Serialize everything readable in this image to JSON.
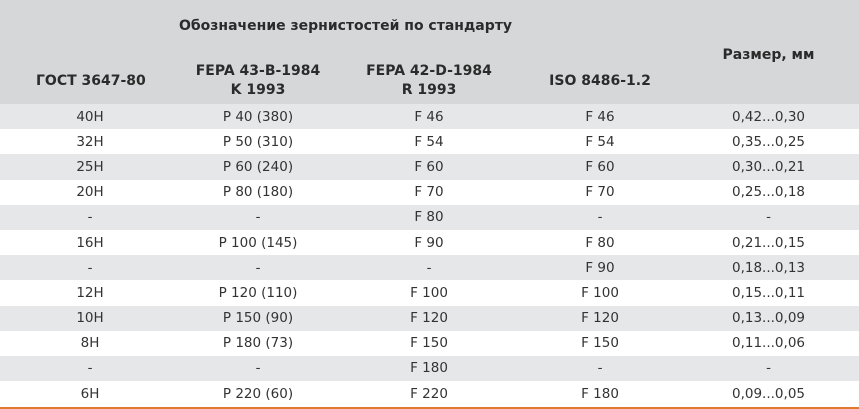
{
  "table": {
    "group_title": "Обозначение зернистостей по стандарту",
    "headers": {
      "gost": "ГОСТ 3647-80",
      "fepa43_line1": "FEPA 43-B-1984",
      "fepa43_line2": "K 1993",
      "fepa42_line1": "FEPA 42-D-1984",
      "fepa42_line2": "R 1993",
      "iso": "ISO 8486-1.2",
      "size": "Размер, мм"
    },
    "rows": [
      [
        "40H",
        "P 40 (380)",
        "F 46",
        "F 46",
        "0,42...0,30"
      ],
      [
        "32H",
        "P 50 (310)",
        "F 54",
        "F 54",
        "0,35...0,25"
      ],
      [
        "25H",
        "P 60 (240)",
        "F 60",
        "F 60",
        "0,30...0,21"
      ],
      [
        "20H",
        "P 80 (180)",
        "F 70",
        "F 70",
        "0,25...0,18"
      ],
      [
        "-",
        "-",
        "F 80",
        "-",
        "-"
      ],
      [
        "16H",
        "P 100 (145)",
        "F 90",
        "F 80",
        "0,21...0,15"
      ],
      [
        "-",
        "-",
        "-",
        "F 90",
        "0,18...0,13"
      ],
      [
        "12H",
        "P 120 (110)",
        "F 100",
        "F 100",
        "0,15...0,11"
      ],
      [
        "10H",
        "P 150 (90)",
        "F 120",
        "F 120",
        "0,13...0,09"
      ],
      [
        "8H",
        "P 180 (73)",
        "F 150",
        "F 150",
        "0,11...0,06"
      ],
      [
        "-",
        "-",
        "F 180",
        "-",
        "-"
      ],
      [
        "6H",
        "P 220 (60)",
        "F 220",
        "F 180",
        "0,09...0,05"
      ]
    ],
    "colors": {
      "header_bg": "#d6d7d8",
      "stripe_bg": "#e6e7e8",
      "accent_line": "#e07a2e"
    }
  }
}
